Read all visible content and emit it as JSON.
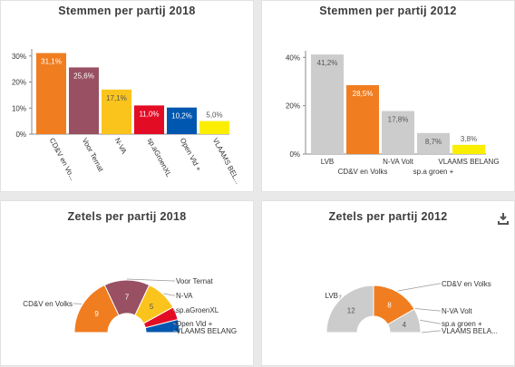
{
  "panels": {
    "p1_title": "Stemmen per partij 2018",
    "p2_title": "Stemmen per partij 2012",
    "p3_title": "Zetels per partij 2018",
    "p4_title": "Zetels per partij 2012",
    "download_icon": "download-icon"
  },
  "chart_data": [
    {
      "type": "bar",
      "title": "Stemmen per partij 2018",
      "categories": [
        "CD&V en Vo...",
        "Voor Ternat",
        "N-VA",
        "sp.aGroenXL",
        "Open Vld +",
        "VLAAMS BEL..."
      ],
      "values": [
        31.1,
        25.6,
        17.1,
        11.0,
        10.2,
        5.0
      ],
      "value_labels": [
        "31,1%",
        "25,6%",
        "17,1%",
        "11,0%",
        "10,2%",
        "5,0%"
      ],
      "colors": [
        "#f07d1f",
        "#985062",
        "#fbc41c",
        "#e30c25",
        "#0057b0",
        "#fbee00"
      ],
      "yticks": [
        "0%",
        "10%",
        "20%",
        "30%"
      ],
      "ytick_values": [
        0,
        10,
        20,
        30
      ],
      "ylim": [
        0,
        32
      ]
    },
    {
      "type": "bar",
      "title": "Stemmen per partij 2012",
      "categories": [
        "LVB",
        "CD&V en Volks",
        "N-VA Volt",
        "sp.a groen +",
        "VLAAMS BELANG"
      ],
      "values": [
        41.2,
        28.5,
        17.8,
        8.7,
        3.8
      ],
      "value_labels": [
        "41,2%",
        "28,5%",
        "17,8%",
        "8,7%",
        "3,8%"
      ],
      "colors": [
        "#cccccc",
        "#f07d1f",
        "#cccccc",
        "#cccccc",
        "#fbee00"
      ],
      "yticks": [
        "0%",
        "20%",
        "40%"
      ],
      "ytick_values": [
        0,
        20,
        40
      ],
      "ylim": [
        0,
        42
      ]
    },
    {
      "type": "pie",
      "title": "Zetels per partij 2018",
      "labels": [
        "CD&V en Volks",
        "Voor Ternat",
        "N-VA",
        "sp.aGroenXL",
        "Open Vld +",
        "VLAAMS BELANG"
      ],
      "values": [
        9,
        7,
        5,
        2,
        2,
        0
      ],
      "colors": [
        "#f07d1f",
        "#985062",
        "#fbc41c",
        "#e30c25",
        "#0057b0",
        "#fbee00"
      ]
    },
    {
      "type": "pie",
      "title": "Zetels per partij 2012",
      "labels": [
        "LVB",
        "CD&V en Volks",
        "N-VA Volt",
        "sp.a groen +",
        "VLAAMS BELA..."
      ],
      "values": [
        12,
        8,
        0,
        4,
        0
      ],
      "colors": [
        "#cccccc",
        "#f07d1f",
        "#cccccc",
        "#cccccc",
        "#fbee00"
      ]
    }
  ]
}
